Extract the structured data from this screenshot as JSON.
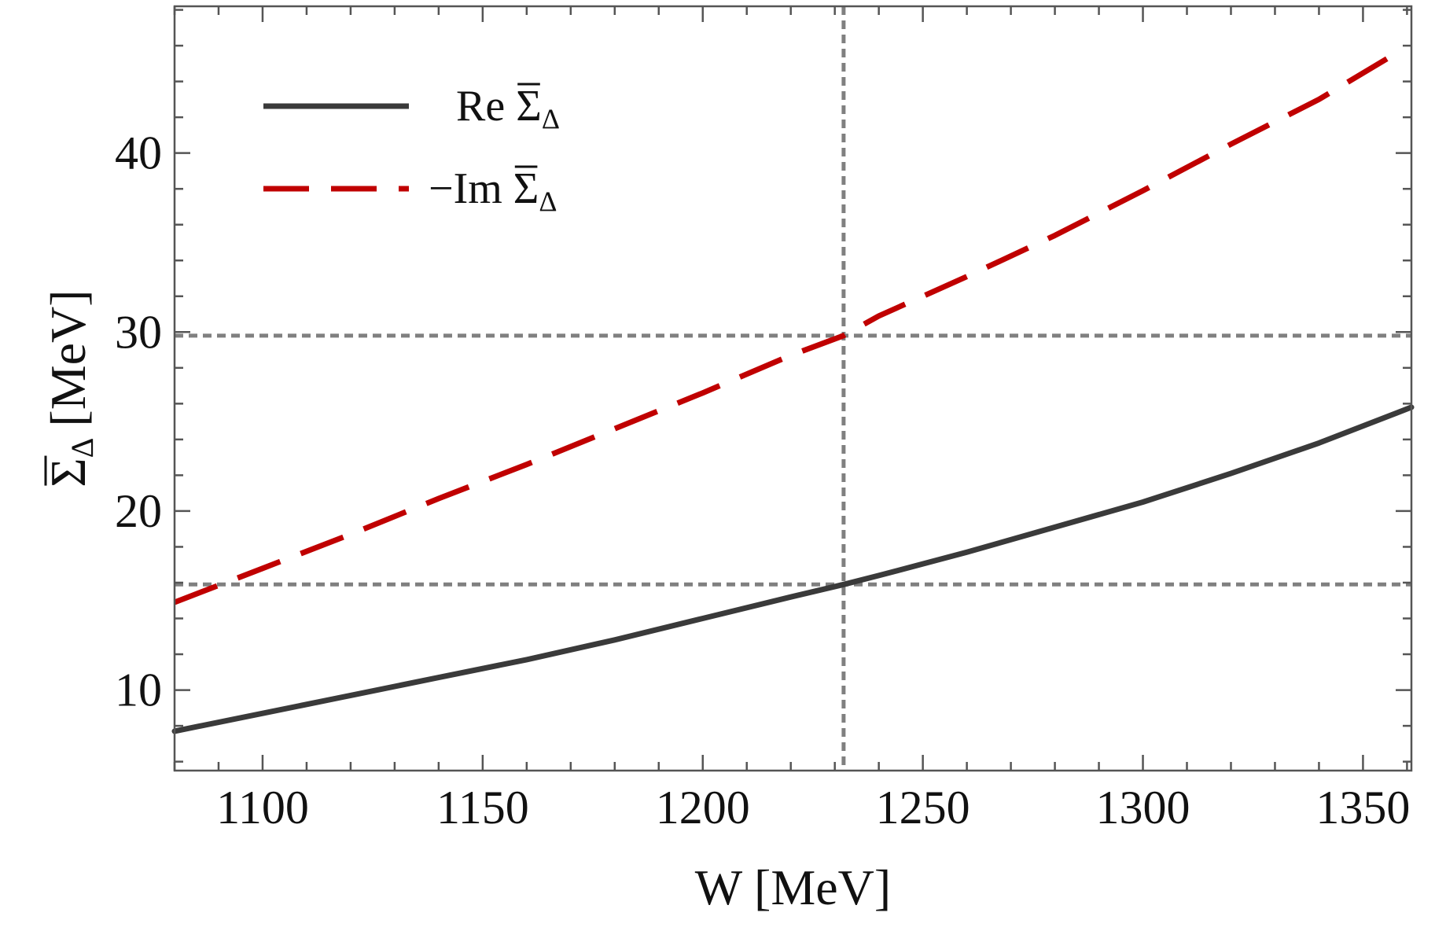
{
  "chart_data": {
    "type": "line",
    "title": "",
    "xlabel": "W [MeV]",
    "ylabel": "Σ̄Δ [MeV]",
    "ylabel_parts": {
      "symbol": "Σ",
      "subscript": "Δ",
      "units": "[MeV]"
    },
    "xlim": [
      1080,
      1361
    ],
    "ylim": [
      5.5,
      48.2
    ],
    "xticks": [
      1100,
      1150,
      1200,
      1250,
      1300,
      1350
    ],
    "yticks": [
      10,
      20,
      30,
      40
    ],
    "grid": false,
    "legend_position": "top-left",
    "reference_lines": {
      "vertical_x": 1232,
      "horizontal_y": [
        29.8,
        15.9
      ]
    },
    "series": [
      {
        "name": "Re Σ̄Δ",
        "label_parts": {
          "prefix": "Re ",
          "symbol": "Σ",
          "subscript": "Δ"
        },
        "style": "solid",
        "color": "#3a3a3a",
        "x": [
          1080,
          1100,
          1120,
          1140,
          1160,
          1180,
          1200,
          1220,
          1232,
          1240,
          1260,
          1280,
          1300,
          1320,
          1340,
          1361
        ],
        "y": [
          7.7,
          8.7,
          9.7,
          10.7,
          11.7,
          12.8,
          14.0,
          15.2,
          15.9,
          16.4,
          17.7,
          19.1,
          20.5,
          22.1,
          23.8,
          25.8
        ]
      },
      {
        "name": "−Im Σ̄Δ",
        "label_parts": {
          "prefix": "−Im ",
          "symbol": "Σ",
          "subscript": "Δ"
        },
        "style": "dashed",
        "color": "#c00000",
        "x": [
          1080,
          1100,
          1120,
          1140,
          1160,
          1180,
          1200,
          1220,
          1232,
          1240,
          1260,
          1280,
          1300,
          1320,
          1340,
          1357
        ],
        "y": [
          14.9,
          16.8,
          18.7,
          20.7,
          22.6,
          24.6,
          26.6,
          28.7,
          29.8,
          30.9,
          33.1,
          35.4,
          37.9,
          40.5,
          43.0,
          45.5
        ]
      }
    ]
  }
}
